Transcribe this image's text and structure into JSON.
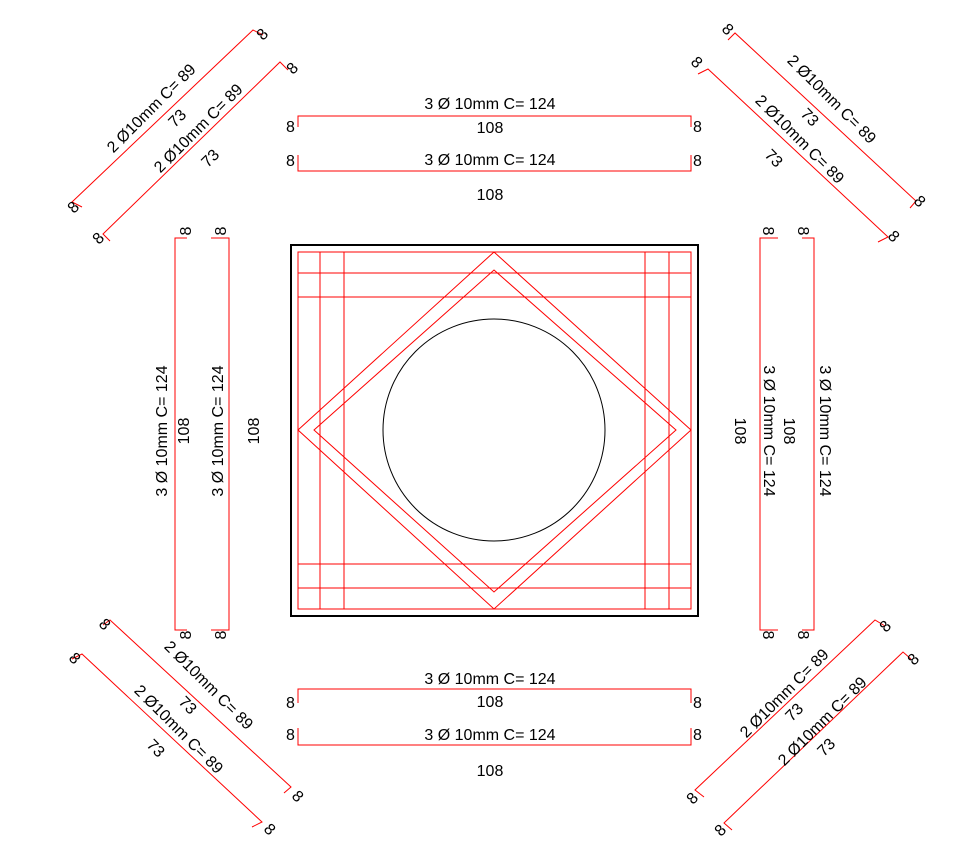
{
  "bars": {
    "straight_label": "3 Ø 10mm C= 124",
    "straight_length": "108",
    "diagonal_label": "2 Ø10mm C= 89",
    "diagonal_length": "73",
    "hook": "8"
  },
  "colors": {
    "rebar": "#ff0000",
    "section": "#000000",
    "background": "#ffffff"
  }
}
